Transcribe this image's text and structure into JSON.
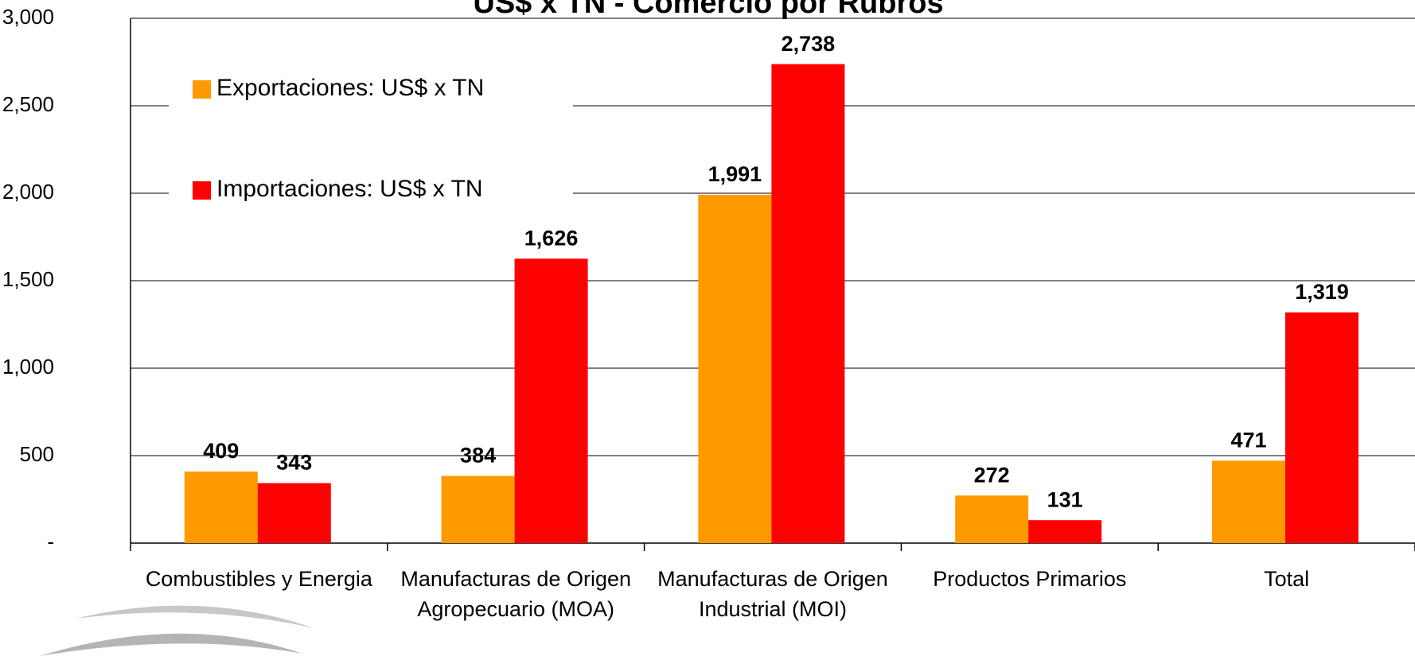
{
  "chart_data": {
    "type": "bar",
    "title": "US$ x TN - Comercio por Rubros",
    "categories": [
      "Combustibles y Energia",
      "Manufacturas de Origen Agropecuario (MOA)",
      "Manufacturas de Origen Industrial (MOI)",
      "Productos Primarios",
      "Total"
    ],
    "series": [
      {
        "name": "Exportaciones: US$ x TN",
        "color": "#ff9900",
        "values": [
          409,
          384,
          1991,
          272,
          471
        ],
        "value_labels": [
          "409",
          "384",
          "1,991",
          "272",
          "471"
        ]
      },
      {
        "name": "Importaciones: US$ x TN",
        "color": "#ff0000",
        "values": [
          343,
          1626,
          2738,
          131,
          1319
        ],
        "value_labels": [
          "343",
          "1,626",
          "2,738",
          "131",
          "1,319"
        ]
      }
    ],
    "ylim": [
      0,
      3000
    ],
    "yticks": [
      {
        "value": 0,
        "label": "-"
      },
      {
        "value": 500,
        "label": "500"
      },
      {
        "value": 1000,
        "label": "1,000"
      },
      {
        "value": 1500,
        "label": "1,500"
      },
      {
        "value": 2000,
        "label": "2,000"
      },
      {
        "value": 2500,
        "label": "2,500"
      },
      {
        "value": 3000,
        "label": "3,000"
      }
    ],
    "grid": true,
    "legend": "upper left"
  }
}
